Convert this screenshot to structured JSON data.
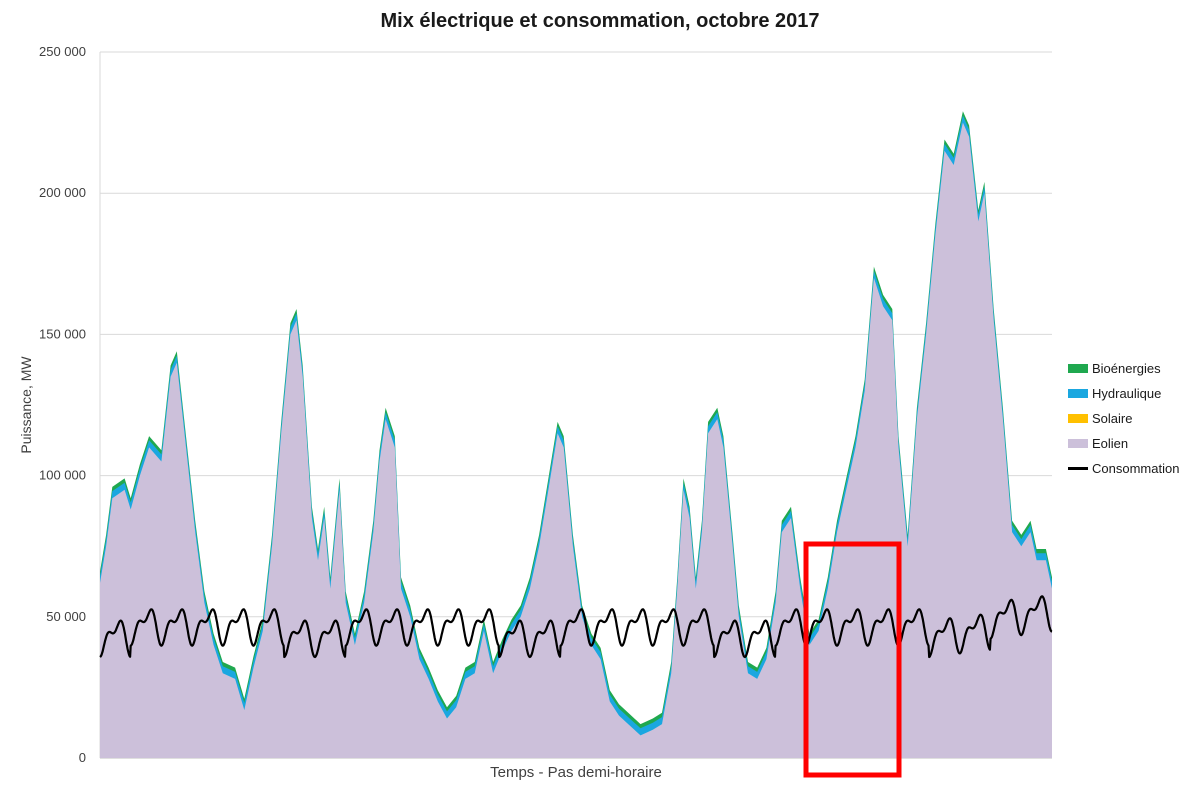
{
  "chart_data": {
    "type": "area",
    "title": "Mix électrique et consommation, octobre 2017",
    "xlabel": "Temps - Pas demi-horaire",
    "ylabel": "Puissance, MW",
    "ylim": [
      0,
      250000
    ],
    "y_ticks": [
      0,
      50000,
      100000,
      150000,
      200000,
      250000
    ],
    "y_tick_labels": [
      "0",
      "50 000",
      "100 000",
      "150 000",
      "200 000",
      "250 000"
    ],
    "x_unit": "day of October (half-hour steps)",
    "xlim": [
      1,
      32
    ],
    "grid": "horizontal",
    "legend_position": "right",
    "series": [
      {
        "name": "Bioénergies",
        "kind": "stacked-area",
        "color": "#1fa84f",
        "constant": 1500
      },
      {
        "name": "Hydraulique",
        "kind": "stacked-area",
        "color": "#1aa7e0",
        "constant": 2500
      },
      {
        "name": "Solaire",
        "kind": "stacked-area",
        "color": "#ffc000",
        "constant": 0
      },
      {
        "name": "Eolien",
        "kind": "stacked-area",
        "color": "#ccc0da",
        "points": [
          [
            1.0,
            62000
          ],
          [
            1.2,
            75000
          ],
          [
            1.4,
            92000
          ],
          [
            1.8,
            95000
          ],
          [
            2.0,
            88000
          ],
          [
            2.3,
            100000
          ],
          [
            2.6,
            110000
          ],
          [
            3.0,
            105000
          ],
          [
            3.3,
            135000
          ],
          [
            3.5,
            140000
          ],
          [
            3.8,
            110000
          ],
          [
            4.1,
            80000
          ],
          [
            4.4,
            55000
          ],
          [
            4.7,
            40000
          ],
          [
            5.0,
            30000
          ],
          [
            5.4,
            28000
          ],
          [
            5.7,
            17000
          ],
          [
            6.0,
            32000
          ],
          [
            6.3,
            45000
          ],
          [
            6.6,
            75000
          ],
          [
            6.9,
            115000
          ],
          [
            7.2,
            150000
          ],
          [
            7.4,
            155000
          ],
          [
            7.6,
            135000
          ],
          [
            7.9,
            85000
          ],
          [
            8.1,
            70000
          ],
          [
            8.3,
            85000
          ],
          [
            8.5,
            60000
          ],
          [
            8.8,
            95000
          ],
          [
            9.0,
            55000
          ],
          [
            9.3,
            40000
          ],
          [
            9.6,
            55000
          ],
          [
            9.9,
            80000
          ],
          [
            10.1,
            105000
          ],
          [
            10.3,
            120000
          ],
          [
            10.6,
            110000
          ],
          [
            10.8,
            60000
          ],
          [
            11.1,
            50000
          ],
          [
            11.4,
            35000
          ],
          [
            11.7,
            28000
          ],
          [
            12.0,
            20000
          ],
          [
            12.3,
            14000
          ],
          [
            12.6,
            18000
          ],
          [
            12.9,
            28000
          ],
          [
            13.2,
            30000
          ],
          [
            13.5,
            45000
          ],
          [
            13.8,
            30000
          ],
          [
            14.1,
            38000
          ],
          [
            14.4,
            45000
          ],
          [
            14.7,
            50000
          ],
          [
            15.0,
            60000
          ],
          [
            15.3,
            75000
          ],
          [
            15.6,
            95000
          ],
          [
            15.9,
            115000
          ],
          [
            16.1,
            110000
          ],
          [
            16.4,
            75000
          ],
          [
            16.7,
            50000
          ],
          [
            17.0,
            40000
          ],
          [
            17.3,
            35000
          ],
          [
            17.6,
            20000
          ],
          [
            17.9,
            15000
          ],
          [
            18.2,
            12000
          ],
          [
            18.6,
            8000
          ],
          [
            19.0,
            10000
          ],
          [
            19.3,
            12000
          ],
          [
            19.6,
            30000
          ],
          [
            19.8,
            60000
          ],
          [
            20.0,
            95000
          ],
          [
            20.2,
            85000
          ],
          [
            20.4,
            60000
          ],
          [
            20.6,
            80000
          ],
          [
            20.8,
            115000
          ],
          [
            21.1,
            120000
          ],
          [
            21.3,
            110000
          ],
          [
            21.6,
            75000
          ],
          [
            21.8,
            50000
          ],
          [
            22.1,
            30000
          ],
          [
            22.4,
            28000
          ],
          [
            22.7,
            35000
          ],
          [
            23.0,
            55000
          ],
          [
            23.2,
            80000
          ],
          [
            23.5,
            85000
          ],
          [
            23.8,
            60000
          ],
          [
            24.1,
            40000
          ],
          [
            24.4,
            45000
          ],
          [
            24.7,
            60000
          ],
          [
            25.0,
            80000
          ],
          [
            25.3,
            95000
          ],
          [
            25.6,
            110000
          ],
          [
            25.9,
            130000
          ],
          [
            26.2,
            170000
          ],
          [
            26.5,
            160000
          ],
          [
            26.8,
            155000
          ],
          [
            27.0,
            110000
          ],
          [
            27.3,
            75000
          ],
          [
            27.6,
            120000
          ],
          [
            27.9,
            150000
          ],
          [
            28.2,
            185000
          ],
          [
            28.5,
            215000
          ],
          [
            28.8,
            210000
          ],
          [
            29.1,
            225000
          ],
          [
            29.3,
            220000
          ],
          [
            29.6,
            190000
          ],
          [
            29.8,
            200000
          ],
          [
            30.1,
            155000
          ],
          [
            30.4,
            120000
          ],
          [
            30.7,
            80000
          ],
          [
            31.0,
            75000
          ],
          [
            31.3,
            80000
          ],
          [
            31.5,
            70000
          ],
          [
            31.8,
            70000
          ],
          [
            32.0,
            60000
          ]
        ]
      },
      {
        "name": "Consommation",
        "kind": "line",
        "color": "#000000",
        "base": 47000,
        "daily_amplitude": 8000,
        "points": [
          [
            1.0,
            45000
          ],
          [
            1.1,
            37000
          ],
          [
            1.3,
            35000
          ],
          [
            1.5,
            42000
          ],
          [
            1.8,
            47000
          ],
          [
            2.0,
            40000
          ],
          [
            2.3,
            45000
          ],
          [
            2.6,
            40000
          ],
          [
            2.9,
            38000
          ]
        ]
      }
    ]
  }
}
